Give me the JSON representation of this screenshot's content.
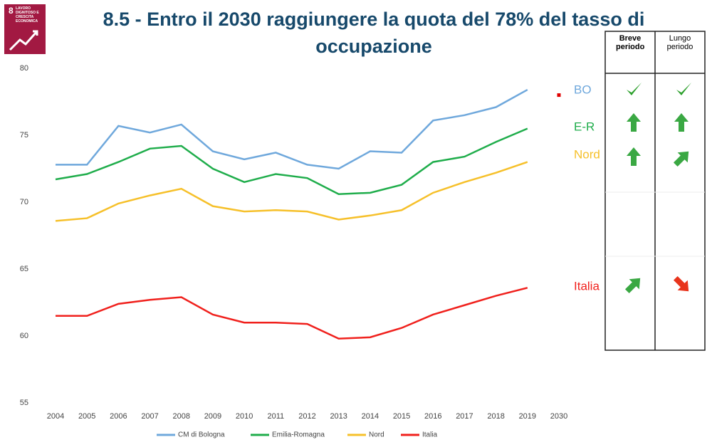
{
  "logo": {
    "number": "8",
    "text": "LAVORO DIGNITOSO E CRESCITA ECONOMICA"
  },
  "chart_data": {
    "type": "line",
    "title": "8.5 - Entro il 2030 raggiungere la quota del 78% del tasso di occupazione",
    "categories": [
      "2004",
      "2005",
      "2006",
      "2007",
      "2008",
      "2009",
      "2010",
      "2011",
      "2012",
      "2013",
      "2014",
      "2015",
      "2016",
      "2017",
      "2018",
      "2019",
      "2030"
    ],
    "series": [
      {
        "name": "CM di Bologna",
        "color": "#6fa8dc",
        "values": [
          72.8,
          72.8,
          75.7,
          75.2,
          75.8,
          73.8,
          73.2,
          73.7,
          72.8,
          72.5,
          73.8,
          73.7,
          76.1,
          76.5,
          77.1,
          78.4,
          null
        ]
      },
      {
        "name": "Emilia-Romagna",
        "color": "#1fad4b",
        "values": [
          71.7,
          72.1,
          73.0,
          74.0,
          74.2,
          72.5,
          71.5,
          72.1,
          71.8,
          70.6,
          70.7,
          71.3,
          73.0,
          73.4,
          74.5,
          75.5,
          null
        ]
      },
      {
        "name": "Nord",
        "color": "#f6c02a",
        "values": [
          68.6,
          68.8,
          69.9,
          70.5,
          71.0,
          69.7,
          69.3,
          69.4,
          69.3,
          68.7,
          69.0,
          69.4,
          70.7,
          71.5,
          72.2,
          73.0,
          null
        ]
      },
      {
        "name": "Italia",
        "color": "#f0201c",
        "values": [
          61.5,
          61.5,
          62.4,
          62.7,
          62.9,
          61.6,
          61.0,
          61.0,
          60.9,
          59.8,
          59.9,
          60.6,
          61.6,
          62.3,
          63.0,
          63.6,
          null
        ]
      }
    ],
    "target_value": 78,
    "target_color": "#e00000",
    "annotations": [
      {
        "text": "BO",
        "color": "#6fa8dc"
      },
      {
        "text": "E-R",
        "color": "#1fad4b"
      },
      {
        "text": "Nord",
        "color": "#f6c02a"
      },
      {
        "text": "Italia",
        "color": "#f0201c"
      }
    ],
    "ylim": [
      55,
      80
    ],
    "yticks": [
      55,
      60,
      65,
      70,
      75,
      80
    ],
    "grid": false,
    "legend": "bottom"
  },
  "table": {
    "headers": [
      "Breve periodo",
      "Lungo periodo"
    ]
  }
}
